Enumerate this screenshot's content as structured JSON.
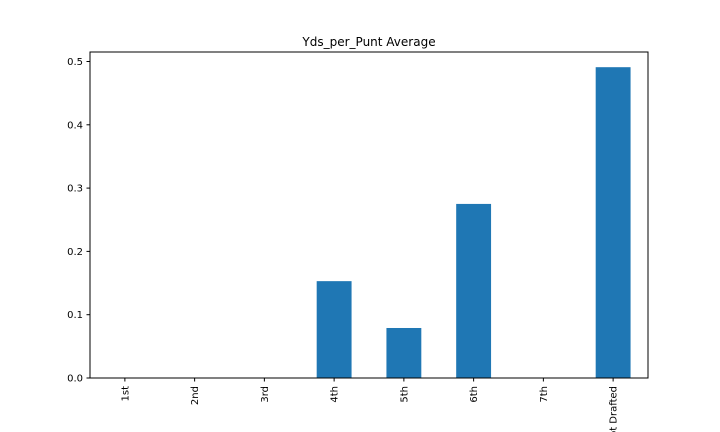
{
  "chart_data": {
    "type": "bar",
    "title": "Yds_per_Punt Average",
    "xlabel": "",
    "ylabel": "",
    "categories": [
      "1st",
      "2nd",
      "3rd",
      "4th",
      "5th",
      "6th",
      "7th",
      "Not Drafted"
    ],
    "values": [
      0,
      0,
      0,
      0.153,
      0.079,
      0.275,
      0,
      0.491
    ],
    "ylim": [
      0,
      0.515
    ],
    "yticks": [
      0.0,
      0.1,
      0.2,
      0.3,
      0.4,
      0.5
    ],
    "ytick_labels": [
      "0.0",
      "0.1",
      "0.2",
      "0.3",
      "0.4",
      "0.5"
    ],
    "bar_color": "#1f77b4",
    "grid": false,
    "legend": "none"
  }
}
